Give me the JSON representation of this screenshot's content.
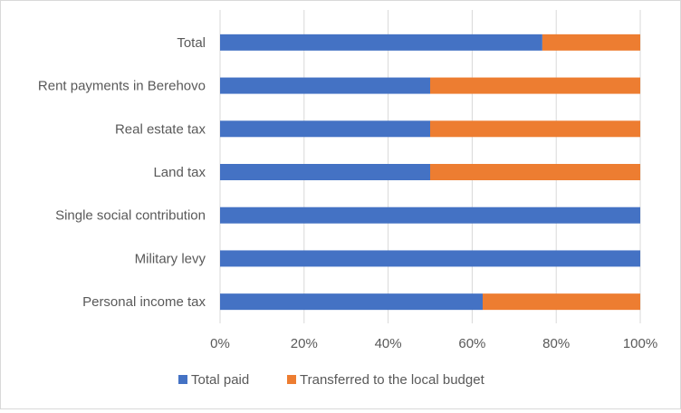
{
  "chart_data": {
    "type": "bar",
    "orientation": "horizontal",
    "stacked": "percent",
    "title": "",
    "xlabel": "",
    "ylabel": "",
    "categories": [
      "Total",
      "Rent payments in Berehovo",
      "Real estate tax",
      "Land tax",
      "Single social contribution",
      "Military levy",
      "Personal income tax"
    ],
    "series": [
      {
        "name": "Total paid",
        "color": "#4472c4",
        "values": [
          76.7,
          50,
          50,
          50,
          100,
          100,
          62.5
        ]
      },
      {
        "name": "Transferred to the local budget",
        "color": "#ed7d31",
        "values": [
          23.3,
          50,
          50,
          50,
          0,
          0,
          37.5
        ]
      }
    ],
    "xlim": [
      0,
      100
    ],
    "xticks": [
      "0%",
      "20%",
      "40%",
      "60%",
      "80%",
      "100%"
    ],
    "grid": true,
    "legend": "bottom"
  }
}
